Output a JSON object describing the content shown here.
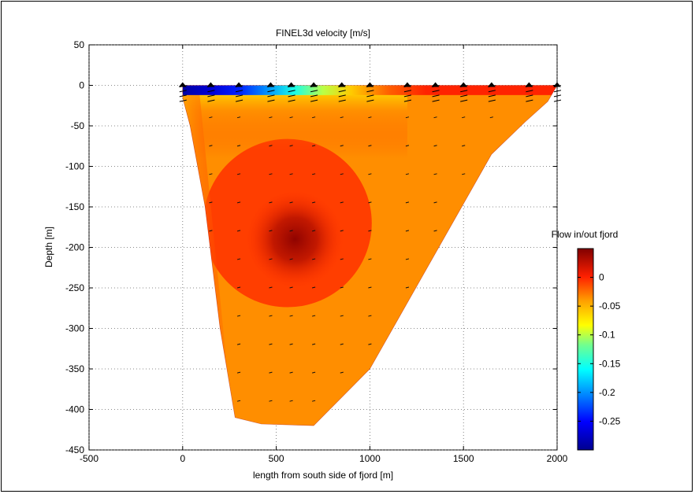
{
  "chart_data": {
    "type": "contour",
    "title": "FINEL3d velocity [m/s]",
    "xlabel": "length from south side of fjord [m]",
    "ylabel": "Depth [m]",
    "xlim": [
      -500,
      2000
    ],
    "ylim": [
      -450,
      50
    ],
    "x_ticks": [
      "-500",
      "0",
      "500",
      "1000",
      "1500",
      "2000"
    ],
    "y_ticks": [
      "50",
      "0",
      "-50",
      "-100",
      "-150",
      "-200",
      "-250",
      "-300",
      "-350",
      "-400",
      "-450"
    ],
    "grid": "dotted",
    "domain_outline": [
      {
        "x": 0,
        "y": 0
      },
      {
        "x": 2000,
        "y": 0
      },
      {
        "x": 1950,
        "y": -20
      },
      {
        "x": 1830,
        "y": -45
      },
      {
        "x": 1650,
        "y": -85
      },
      {
        "x": 1000,
        "y": -350
      },
      {
        "x": 700,
        "y": -420
      },
      {
        "x": 420,
        "y": -418
      },
      {
        "x": 280,
        "y": -410
      },
      {
        "x": 200,
        "y": -300
      },
      {
        "x": 120,
        "y": -150
      },
      {
        "x": 40,
        "y": -50
      },
      {
        "x": 0,
        "y": -15
      }
    ],
    "surface_velocity_profile": [
      {
        "x": 0,
        "v": -0.29
      },
      {
        "x": 150,
        "v": -0.27
      },
      {
        "x": 300,
        "v": -0.24
      },
      {
        "x": 450,
        "v": -0.2
      },
      {
        "x": 600,
        "v": -0.15
      },
      {
        "x": 750,
        "v": -0.1
      },
      {
        "x": 900,
        "v": -0.06
      },
      {
        "x": 1100,
        "v": -0.02
      },
      {
        "x": 1300,
        "v": 0
      },
      {
        "x": 2000,
        "v": 0
      }
    ],
    "core_max": {
      "x": 600,
      "y": -190,
      "v": 0.05
    },
    "profile_stations_x": [
      0,
      150,
      300,
      470,
      580,
      700,
      850,
      1000,
      1200,
      1350,
      1500,
      1650,
      1850,
      2000
    ],
    "colorbar": {
      "title": "Flow in/out fjord",
      "range": [
        -0.3,
        0.05
      ],
      "ticks": [
        "0",
        "-0.05",
        "-0.1",
        "-0.15",
        "-0.2",
        "-0.25"
      ],
      "tick_values": [
        0,
        -0.05,
        -0.1,
        -0.15,
        -0.2,
        -0.25
      ],
      "colormap": "jet"
    }
  }
}
